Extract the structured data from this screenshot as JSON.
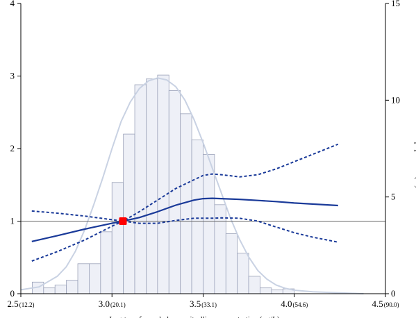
{
  "chart_data": {
    "type": "line+histogram",
    "xlabel": "Log-transformed plasma citrulline concentration (µg/L)",
    "ylabel": "",
    "y2label": "Percent of population (%)",
    "xlim": [
      2.5,
      4.5
    ],
    "ylim": [
      0,
      4
    ],
    "y2lim": [
      0,
      15
    ],
    "x_ticks": [
      {
        "value": 2.5,
        "label": "2.5",
        "sub": "(12.2)"
      },
      {
        "value": 3.0,
        "label": "3.0",
        "sub": "(20.1)"
      },
      {
        "value": 3.5,
        "label": "3.5",
        "sub": "(33.1)"
      },
      {
        "value": 4.0,
        "label": "4.0",
        "sub": "(54.6)"
      },
      {
        "value": 4.5,
        "label": "4.5",
        "sub": "(90.0)"
      }
    ],
    "y_ticks": [
      {
        "value": 0,
        "label": "0"
      },
      {
        "value": 1,
        "label": "1"
      },
      {
        "value": 2,
        "label": "2"
      },
      {
        "value": 3,
        "label": "3"
      },
      {
        "value": 4,
        "label": "4"
      }
    ],
    "y2_ticks": [
      {
        "value": 0,
        "label": "0"
      },
      {
        "value": 5,
        "label": "5"
      },
      {
        "value": 10,
        "label": "10"
      },
      {
        "value": 15,
        "label": "15"
      }
    ],
    "reference_line": 1,
    "reference_point": {
      "x": 3.06,
      "y": 1.0
    },
    "histogram": {
      "bin_width": 0.0625,
      "bins": [
        {
          "x0": 2.5625,
          "percent": 0.6
        },
        {
          "x0": 2.625,
          "percent": 0.3
        },
        {
          "x0": 2.6875,
          "percent": 0.45
        },
        {
          "x0": 2.75,
          "percent": 0.7
        },
        {
          "x0": 2.8125,
          "percent": 1.55
        },
        {
          "x0": 2.875,
          "percent": 1.55
        },
        {
          "x0": 2.9375,
          "percent": 3.2
        },
        {
          "x0": 3.0,
          "percent": 5.75
        },
        {
          "x0": 3.0625,
          "percent": 8.25
        },
        {
          "x0": 3.125,
          "percent": 10.8
        },
        {
          "x0": 3.1875,
          "percent": 11.1
        },
        {
          "x0": 3.25,
          "percent": 11.3
        },
        {
          "x0": 3.3125,
          "percent": 10.5
        },
        {
          "x0": 3.375,
          "percent": 9.3
        },
        {
          "x0": 3.4375,
          "percent": 7.95
        },
        {
          "x0": 3.5,
          "percent": 7.2
        },
        {
          "x0": 3.5625,
          "percent": 4.6
        },
        {
          "x0": 3.625,
          "percent": 3.1
        },
        {
          "x0": 3.6875,
          "percent": 2.1
        },
        {
          "x0": 3.75,
          "percent": 0.9
        },
        {
          "x0": 3.8125,
          "percent": 0.3
        },
        {
          "x0": 3.875,
          "percent": 0.2
        },
        {
          "x0": 3.9375,
          "percent": 0.25
        }
      ]
    },
    "density": {
      "x": [
        2.5,
        2.6,
        2.7,
        2.75,
        2.8,
        2.85,
        2.9,
        2.95,
        3.0,
        3.05,
        3.1,
        3.15,
        3.2,
        3.25,
        3.3,
        3.35,
        3.4,
        3.45,
        3.5,
        3.55,
        3.6,
        3.65,
        3.7,
        3.75,
        3.8,
        3.85,
        3.9,
        3.95,
        4.0,
        4.1,
        4.2,
        4.3,
        4.38
      ],
      "percent": [
        0.2,
        0.35,
        0.9,
        1.4,
        2.2,
        3.3,
        4.6,
        6.0,
        7.5,
        8.9,
        9.9,
        10.6,
        11.0,
        11.15,
        11.05,
        10.7,
        10.0,
        9.0,
        7.8,
        6.5,
        5.2,
        3.9,
        2.8,
        1.9,
        1.2,
        0.75,
        0.45,
        0.28,
        0.18,
        0.1,
        0.06,
        0.03,
        0.0
      ]
    },
    "series": [
      {
        "style": "solid",
        "x": [
          2.56,
          2.7,
          2.85,
          3.0,
          3.06,
          3.15,
          3.25,
          3.35,
          3.45,
          3.5,
          3.55,
          3.6,
          3.7,
          3.8,
          3.9,
          4.0,
          4.1,
          4.24
        ],
        "y": [
          0.72,
          0.8,
          0.89,
          0.97,
          1.0,
          1.05,
          1.13,
          1.22,
          1.29,
          1.31,
          1.315,
          1.31,
          1.3,
          1.285,
          1.27,
          1.25,
          1.235,
          1.215
        ]
      },
      {
        "style": "dashed",
        "x": [
          2.56,
          2.7,
          2.85,
          3.0,
          3.06,
          3.15,
          3.25,
          3.35,
          3.45,
          3.5,
          3.55,
          3.6,
          3.7,
          3.8,
          3.9,
          4.0,
          4.1,
          4.24
        ],
        "y": [
          1.14,
          1.11,
          1.07,
          1.02,
          1.0,
          0.97,
          0.97,
          1.01,
          1.04,
          1.04,
          1.04,
          1.045,
          1.04,
          1.0,
          0.92,
          0.84,
          0.78,
          0.71
        ]
      },
      {
        "style": "dashed",
        "x": [
          2.56,
          2.7,
          2.85,
          3.0,
          3.06,
          3.15,
          3.25,
          3.35,
          3.45,
          3.5,
          3.55,
          3.6,
          3.7,
          3.8,
          3.9,
          4.0,
          4.1,
          4.24
        ],
        "y": [
          0.45,
          0.58,
          0.74,
          0.93,
          1.0,
          1.13,
          1.29,
          1.45,
          1.57,
          1.63,
          1.65,
          1.64,
          1.61,
          1.64,
          1.72,
          1.82,
          1.92,
          2.06
        ]
      }
    ],
    "colors": {
      "curve": "#1a3a99",
      "bar_fill": "#eef0f7",
      "bar_stroke": "#9aa1b8",
      "density": "#c9d2e3",
      "ref_point": "#ff0000",
      "axis": "#000000",
      "ref_line": "#666666"
    }
  }
}
